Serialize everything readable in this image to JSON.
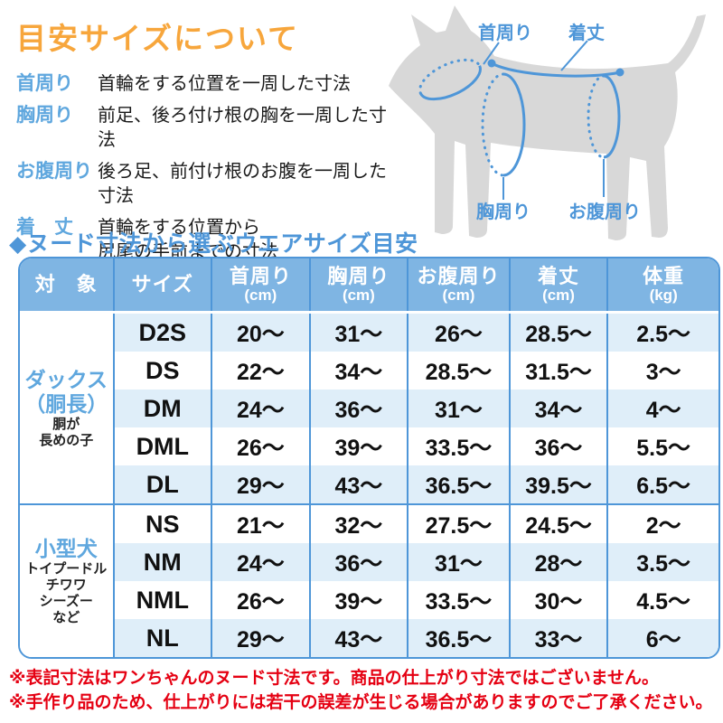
{
  "title": "目安サイズについて",
  "definitions": [
    {
      "term": "首周り",
      "desc": "首輪をする位置を一周した寸法"
    },
    {
      "term": "胸周り",
      "desc": "前足、後ろ付け根の胸を一周した寸法"
    },
    {
      "term": "お腹周り",
      "desc": "後ろ足、前付け根のお腹を一周した寸法"
    },
    {
      "term": "着　丈",
      "desc": "首輪をする位置から\n尻尾の手前までの寸法"
    }
  ],
  "diagram": {
    "neck_label": "首周り",
    "length_label": "着丈",
    "chest_label": "胸周り",
    "belly_label": "お腹周り"
  },
  "table_heading": "◆ヌード寸法から選ぶウエアサイズ目安",
  "size_table": {
    "columns": [
      {
        "label": "対　象",
        "unit": ""
      },
      {
        "label": "サイズ",
        "unit": ""
      },
      {
        "label": "首周り",
        "unit": "(cm)"
      },
      {
        "label": "胸周り",
        "unit": "(cm)"
      },
      {
        "label": "お腹周り",
        "unit": "(cm)"
      },
      {
        "label": "着丈",
        "unit": "(cm)"
      },
      {
        "label": "体重",
        "unit": "(kg)"
      }
    ],
    "groups": [
      {
        "name_lines": [
          "ダックス",
          "（胴長）"
        ],
        "note_lines": [
          "胴が",
          "長めの子"
        ],
        "rows": [
          {
            "size": "D2S",
            "values": [
              "20～",
              "31～",
              "26～",
              "28.5～",
              "2.5～"
            ]
          },
          {
            "size": "DS",
            "values": [
              "22～",
              "34～",
              "28.5～",
              "31.5～",
              "3～"
            ]
          },
          {
            "size": "DM",
            "values": [
              "24～",
              "36～",
              "31～",
              "34～",
              "4～"
            ]
          },
          {
            "size": "DML",
            "values": [
              "26～",
              "39～",
              "33.5～",
              "36～",
              "5.5～"
            ]
          },
          {
            "size": "DL",
            "values": [
              "29～",
              "43～",
              "36.5～",
              "39.5～",
              "6.5～"
            ]
          }
        ]
      },
      {
        "name_lines": [
          "小型犬"
        ],
        "note_lines": [
          "トイプードル",
          "チワワ",
          "シーズー",
          "など"
        ],
        "rows": [
          {
            "size": "NS",
            "values": [
              "21～",
              "32～",
              "27.5～",
              "24.5～",
              "2～"
            ]
          },
          {
            "size": "NM",
            "values": [
              "24～",
              "36～",
              "31～",
              "28～",
              "3.5～"
            ]
          },
          {
            "size": "NML",
            "values": [
              "26～",
              "39～",
              "33.5～",
              "30～",
              "4.5～"
            ]
          },
          {
            "size": "NL",
            "values": [
              "29～",
              "43～",
              "36.5～",
              "33～",
              "6～"
            ]
          }
        ]
      }
    ]
  },
  "notes": [
    "※表記寸法はワンちゃんのヌード寸法です。商品の仕上がり寸法ではございません。",
    "※手作り品のため、仕上がりには若干の誤差が生じる場合がありますのでご了承ください。"
  ],
  "colors": {
    "accent_orange": "#F7A63C",
    "accent_blue": "#4E96D8",
    "label_blue": "#5FA7DE",
    "table_header_bg": "#7FB5E3",
    "row_alt_bg": "#DFEEF9",
    "note_red": "#E50012",
    "dog_gray": "#D8D8D8"
  }
}
